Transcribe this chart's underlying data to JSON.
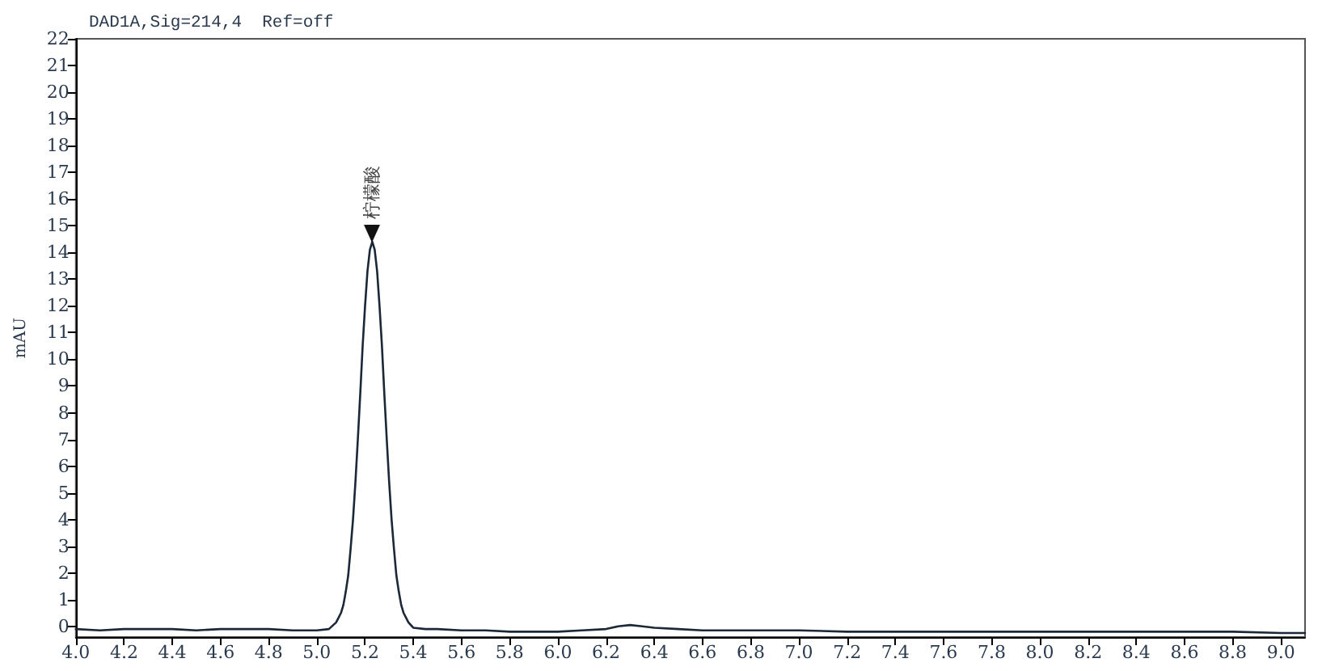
{
  "chart_data": {
    "type": "line",
    "title": "DAD1A,Sig=214,4  Ref=off",
    "ylabel": "mAU",
    "x": [
      4.0,
      4.1,
      4.2,
      4.3,
      4.4,
      4.5,
      4.6,
      4.7,
      4.8,
      4.9,
      5.0,
      5.05,
      5.08,
      5.1,
      5.11,
      5.12,
      5.13,
      5.14,
      5.15,
      5.16,
      5.17,
      5.18,
      5.19,
      5.2,
      5.21,
      5.22,
      5.23,
      5.24,
      5.25,
      5.26,
      5.27,
      5.28,
      5.29,
      5.3,
      5.31,
      5.32,
      5.33,
      5.34,
      5.35,
      5.36,
      5.38,
      5.4,
      5.45,
      5.5,
      5.6,
      5.7,
      5.8,
      5.9,
      6.0,
      6.1,
      6.2,
      6.25,
      6.3,
      6.35,
      6.4,
      6.5,
      6.6,
      6.8,
      7.0,
      7.2,
      7.4,
      7.6,
      7.8,
      8.0,
      8.2,
      8.4,
      8.6,
      8.8,
      9.0,
      9.1
    ],
    "values": [
      -0.1,
      -0.15,
      -0.1,
      -0.1,
      -0.1,
      -0.15,
      -0.1,
      -0.1,
      -0.1,
      -0.15,
      -0.15,
      -0.1,
      0.15,
      0.5,
      0.8,
      1.3,
      1.9,
      2.9,
      4.0,
      5.4,
      7.0,
      8.7,
      10.5,
      12.0,
      13.3,
      14.1,
      14.4,
      14.1,
      13.3,
      12.0,
      10.5,
      8.7,
      7.0,
      5.4,
      4.0,
      2.9,
      1.9,
      1.3,
      0.8,
      0.5,
      0.15,
      -0.05,
      -0.1,
      -0.1,
      -0.15,
      -0.15,
      -0.2,
      -0.2,
      -0.2,
      -0.15,
      -0.1,
      0.0,
      0.05,
      0.0,
      -0.05,
      -0.1,
      -0.15,
      -0.15,
      -0.15,
      -0.2,
      -0.2,
      -0.2,
      -0.2,
      -0.2,
      -0.2,
      -0.2,
      -0.2,
      -0.2,
      -0.25,
      -0.25
    ],
    "color": "#1b2838",
    "xlim": [
      4,
      9.1
    ],
    "ylim": [
      -0.4,
      22
    ],
    "xticks": [
      {
        "value": 4,
        "label": "4.0"
      },
      4.2,
      4.4,
      4.6,
      4.8,
      {
        "value": 5,
        "label": "5.0"
      },
      5.2,
      5.4,
      5.6,
      5.8,
      {
        "value": 6,
        "label": "6.0"
      },
      6.2,
      6.4,
      6.6,
      6.8,
      {
        "value": 7,
        "label": "7.0"
      },
      7.2,
      7.4,
      7.6,
      7.8,
      {
        "value": 8,
        "label": "8.0"
      },
      8.2,
      8.4,
      8.6,
      8.8,
      {
        "value": 9,
        "label": "9.0"
      }
    ],
    "yticks": [
      0,
      1,
      2,
      3,
      4,
      5,
      6,
      7,
      8,
      9,
      10,
      11,
      12,
      13,
      14,
      15,
      16,
      17,
      18,
      19,
      20,
      21,
      22
    ],
    "grid": false,
    "marker": "none",
    "line_style": "solid",
    "annotations": [
      {
        "text": "柠檬酸",
        "x": 5.23,
        "y": 14.4
      }
    ]
  }
}
